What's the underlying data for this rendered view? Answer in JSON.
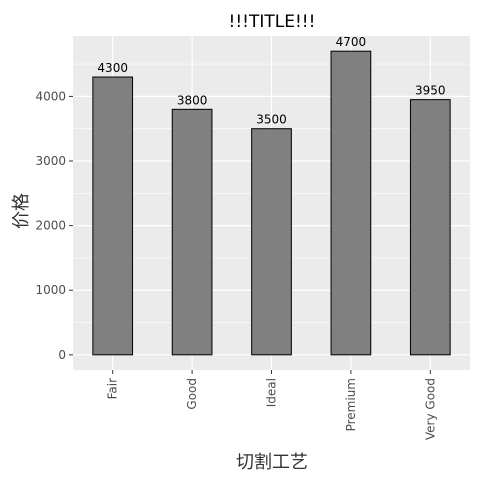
{
  "chart_data": {
    "type": "bar",
    "title": "!!!TITLE!!!",
    "xlabel": "切割工艺",
    "ylabel": "价格",
    "categories": [
      "Fair",
      "Good",
      "Ideal",
      "Premium",
      "Very Good"
    ],
    "values": [
      4300,
      3800,
      3500,
      4700,
      3950
    ],
    "data_labels": [
      "4300",
      "3800",
      "3500",
      "4700",
      "3950"
    ],
    "yticks": [
      0,
      1000,
      2000,
      3000,
      4000
    ],
    "ytick_labels": [
      "0",
      "1000",
      "2000",
      "3000",
      "4000"
    ],
    "ylim": [
      -235,
      4935
    ],
    "grid": true,
    "colors": {
      "bar_fill": "#808080",
      "bar_stroke": "#000000",
      "panel_bg": "#ebebeb",
      "grid": "#ffffff"
    }
  }
}
